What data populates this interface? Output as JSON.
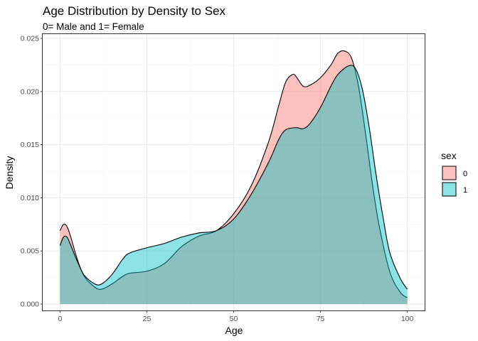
{
  "chart_data": {
    "type": "area",
    "title": "Age Distribution by Density to Sex",
    "subtitle": "0= Male and 1= Female",
    "xlabel": "Age",
    "ylabel": "Density",
    "xlim": [
      -5,
      105
    ],
    "ylim": [
      -0.0006,
      0.0254
    ],
    "x_ticks": [
      0,
      25,
      50,
      75,
      100
    ],
    "x_tick_labels": [
      "0",
      "25",
      "50",
      "75",
      "100"
    ],
    "y_ticks": [
      0,
      0.005,
      0.01,
      0.015,
      0.02,
      0.025
    ],
    "y_tick_labels": [
      "0.000",
      "0.005",
      "0.010",
      "0.015",
      "0.020",
      "0.025"
    ],
    "grid": true,
    "legend": {
      "title": "sex",
      "position": "right"
    },
    "series": [
      {
        "name": "0",
        "color": "#F8766D",
        "x": [
          0,
          1,
          2,
          3,
          5,
          7,
          10,
          12,
          15,
          18,
          20,
          25,
          30,
          35,
          40,
          45,
          50,
          55,
          60,
          63,
          65,
          67,
          68,
          70,
          72,
          75,
          78,
          80,
          82,
          84,
          86,
          88,
          90,
          92,
          95,
          98,
          100
        ],
        "y": [
          0.0069,
          0.0075,
          0.0073,
          0.0064,
          0.0042,
          0.0026,
          0.0016,
          0.0014,
          0.0019,
          0.0026,
          0.0029,
          0.0031,
          0.0038,
          0.0054,
          0.0064,
          0.0069,
          0.0085,
          0.0111,
          0.0152,
          0.0187,
          0.0209,
          0.0216,
          0.0214,
          0.0205,
          0.0206,
          0.0213,
          0.0225,
          0.0236,
          0.0238,
          0.0231,
          0.0204,
          0.016,
          0.0112,
          0.0072,
          0.003,
          0.0011,
          0.0006
        ]
      },
      {
        "name": "1",
        "color": "#00BFC4",
        "x": [
          0,
          1,
          2,
          3,
          5,
          7,
          10,
          12,
          15,
          18,
          20,
          25,
          30,
          35,
          40,
          45,
          50,
          55,
          60,
          63,
          65,
          68,
          70,
          72,
          75,
          78,
          80,
          83,
          85,
          87,
          89,
          91,
          93,
          95,
          98,
          100
        ],
        "y": [
          0.0055,
          0.0063,
          0.0063,
          0.0056,
          0.004,
          0.0027,
          0.0019,
          0.0019,
          0.0028,
          0.0042,
          0.0048,
          0.0053,
          0.0057,
          0.0063,
          0.0067,
          0.0069,
          0.008,
          0.0103,
          0.0133,
          0.0155,
          0.0164,
          0.0166,
          0.0165,
          0.017,
          0.0185,
          0.0205,
          0.0216,
          0.0224,
          0.0222,
          0.0203,
          0.0167,
          0.0122,
          0.0082,
          0.0048,
          0.0024,
          0.0014
        ]
      }
    ]
  }
}
